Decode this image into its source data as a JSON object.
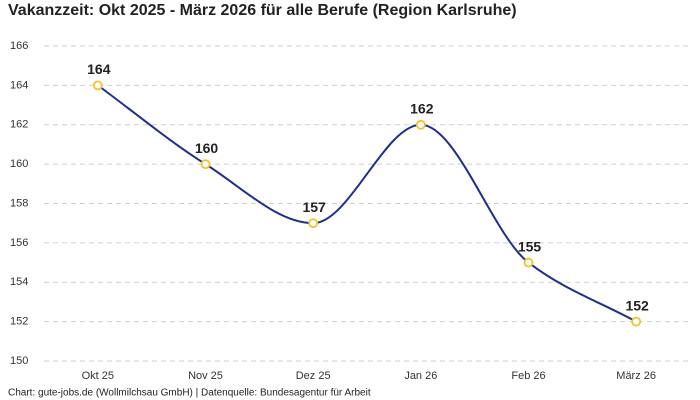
{
  "chart_data": {
    "type": "line",
    "title": "Vakanzzeit: Okt 2025 - März 2026 für alle Berufe (Region Karlsruhe)",
    "categories": [
      "Okt 25",
      "Nov 25",
      "Dez 25",
      "Jan 26",
      "Feb 26",
      "März 26"
    ],
    "values": [
      164,
      160,
      157,
      162,
      155,
      152
    ],
    "color": "#1f2f8c",
    "marker_color": "#f2c12e",
    "ylim": [
      150,
      166
    ],
    "yticks": [
      150,
      152,
      154,
      156,
      158,
      160,
      162,
      164,
      166
    ],
    "grid": true,
    "smooth": true,
    "footer": "Chart: gute-jobs.de (Wollmilchsau GmbH) | Datenquelle: Bundesagentur für Arbeit"
  }
}
